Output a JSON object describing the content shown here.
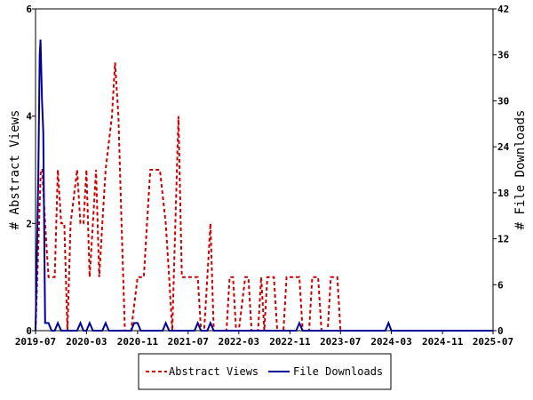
{
  "chart_data": {
    "type": "line",
    "ylabel_left": "# Abstract Views",
    "ylabel_right": "# File Downloads",
    "x_tick_labels": [
      "2019-07",
      "2020-03",
      "2020-11",
      "2021-07",
      "2022-03",
      "2022-11",
      "2023-07",
      "2024-03",
      "2024-11",
      "2025-07"
    ],
    "y_left_ticks": [
      "0",
      "2",
      "4",
      "6"
    ],
    "y_right_ticks": [
      "0",
      "6",
      "12",
      "18",
      "24",
      "30",
      "36",
      "42"
    ],
    "ylim_left": [
      0,
      6
    ],
    "ylim_right": [
      0,
      42
    ],
    "grid": false,
    "legend_position": "bottom",
    "series": [
      {
        "name": "Abstract Views",
        "axis": "left",
        "color": "#cc0000",
        "style": "dashed",
        "points": [
          [
            "2019-07-01",
            0
          ],
          [
            "2019-07-18",
            2
          ],
          [
            "2019-07-26",
            3
          ],
          [
            "2019-08-02",
            3
          ],
          [
            "2019-08-16",
            2
          ],
          [
            "2019-09-01",
            1
          ],
          [
            "2019-09-16",
            1
          ],
          [
            "2019-10-01",
            1
          ],
          [
            "2019-10-16",
            3
          ],
          [
            "2019-11-01",
            2
          ],
          [
            "2019-11-16",
            2
          ],
          [
            "2019-12-01",
            0
          ],
          [
            "2019-12-16",
            2
          ],
          [
            "2020-01-16",
            3
          ],
          [
            "2020-02-01",
            2
          ],
          [
            "2020-02-16",
            2
          ],
          [
            "2020-03-01",
            3
          ],
          [
            "2020-03-16",
            1
          ],
          [
            "2020-04-01",
            2
          ],
          [
            "2020-04-16",
            3
          ],
          [
            "2020-05-01",
            1
          ],
          [
            "2020-05-16",
            2
          ],
          [
            "2020-06-01",
            3
          ],
          [
            "2020-07-01",
            4
          ],
          [
            "2020-07-16",
            5
          ],
          [
            "2020-08-01",
            4
          ],
          [
            "2020-08-16",
            2
          ],
          [
            "2020-09-01",
            0
          ],
          [
            "2020-10-01",
            0
          ],
          [
            "2020-11-01",
            1
          ],
          [
            "2020-12-01",
            1
          ],
          [
            "2020-12-16",
            2
          ],
          [
            "2021-01-01",
            3
          ],
          [
            "2021-01-16",
            3
          ],
          [
            "2021-02-16",
            3
          ],
          [
            "2021-03-16",
            2
          ],
          [
            "2021-04-01",
            1
          ],
          [
            "2021-04-16",
            0
          ],
          [
            "2021-05-01",
            2
          ],
          [
            "2021-05-16",
            4
          ],
          [
            "2021-06-01",
            1
          ],
          [
            "2021-07-01",
            1
          ],
          [
            "2021-08-01",
            1
          ],
          [
            "2021-08-16",
            1
          ],
          [
            "2021-09-01",
            0
          ],
          [
            "2021-09-16",
            0
          ],
          [
            "2021-10-01",
            1
          ],
          [
            "2021-10-16",
            2
          ],
          [
            "2021-11-01",
            0
          ],
          [
            "2021-11-16",
            0
          ],
          [
            "2021-12-01",
            0
          ],
          [
            "2022-01-01",
            0
          ],
          [
            "2022-01-16",
            1
          ],
          [
            "2022-02-01",
            1
          ],
          [
            "2022-02-16",
            0
          ],
          [
            "2022-03-01",
            0
          ],
          [
            "2022-04-01",
            1
          ],
          [
            "2022-04-16",
            1
          ],
          [
            "2022-05-01",
            0
          ],
          [
            "2022-06-01",
            0
          ],
          [
            "2022-06-16",
            1
          ],
          [
            "2022-07-01",
            0
          ],
          [
            "2022-07-16",
            1
          ],
          [
            "2022-08-01",
            1
          ],
          [
            "2022-08-16",
            1
          ],
          [
            "2022-09-01",
            0
          ],
          [
            "2022-10-01",
            0
          ],
          [
            "2022-10-16",
            1
          ],
          [
            "2022-11-01",
            1
          ],
          [
            "2022-11-16",
            1
          ],
          [
            "2022-12-01",
            1
          ],
          [
            "2022-12-16",
            1
          ],
          [
            "2023-01-01",
            0
          ],
          [
            "2023-02-01",
            0
          ],
          [
            "2023-02-16",
            1
          ],
          [
            "2023-03-01",
            1
          ],
          [
            "2023-03-16",
            1
          ],
          [
            "2023-04-01",
            0
          ],
          [
            "2023-05-01",
            0
          ],
          [
            "2023-05-16",
            1
          ],
          [
            "2023-06-16",
            1
          ],
          [
            "2023-07-01",
            0
          ]
        ]
      },
      {
        "name": "File Downloads",
        "axis": "right",
        "color": "#000099",
        "style": "solid",
        "points": [
          [
            "2019-07-01",
            0
          ],
          [
            "2019-07-14",
            20
          ],
          [
            "2019-07-21",
            36
          ],
          [
            "2019-07-25",
            38
          ],
          [
            "2019-08-01",
            30
          ],
          [
            "2019-08-07",
            26
          ],
          [
            "2019-08-16",
            1
          ],
          [
            "2019-09-01",
            1
          ],
          [
            "2019-09-16",
            0
          ],
          [
            "2019-10-01",
            0
          ],
          [
            "2019-10-16",
            1
          ],
          [
            "2019-11-01",
            0
          ],
          [
            "2019-12-16",
            0
          ],
          [
            "2020-01-16",
            0
          ],
          [
            "2020-02-01",
            1
          ],
          [
            "2020-02-16",
            0
          ],
          [
            "2020-03-01",
            0
          ],
          [
            "2020-03-16",
            1
          ],
          [
            "2020-04-01",
            0
          ],
          [
            "2020-05-16",
            0
          ],
          [
            "2020-06-01",
            1
          ],
          [
            "2020-06-16",
            0
          ],
          [
            "2020-10-01",
            0
          ],
          [
            "2020-10-16",
            1
          ],
          [
            "2020-11-01",
            1
          ],
          [
            "2020-11-16",
            0
          ],
          [
            "2021-03-01",
            0
          ],
          [
            "2021-03-16",
            1
          ],
          [
            "2021-04-01",
            0
          ],
          [
            "2021-08-01",
            0
          ],
          [
            "2021-08-16",
            1
          ],
          [
            "2021-09-01",
            0
          ],
          [
            "2021-10-01",
            0
          ],
          [
            "2021-10-16",
            1
          ],
          [
            "2021-11-01",
            0
          ],
          [
            "2022-12-01",
            0
          ],
          [
            "2022-12-16",
            1
          ],
          [
            "2023-01-01",
            0
          ],
          [
            "2024-02-01",
            0
          ],
          [
            "2024-02-16",
            1
          ],
          [
            "2024-03-01",
            0
          ],
          [
            "2025-07-01",
            0
          ]
        ]
      }
    ]
  }
}
